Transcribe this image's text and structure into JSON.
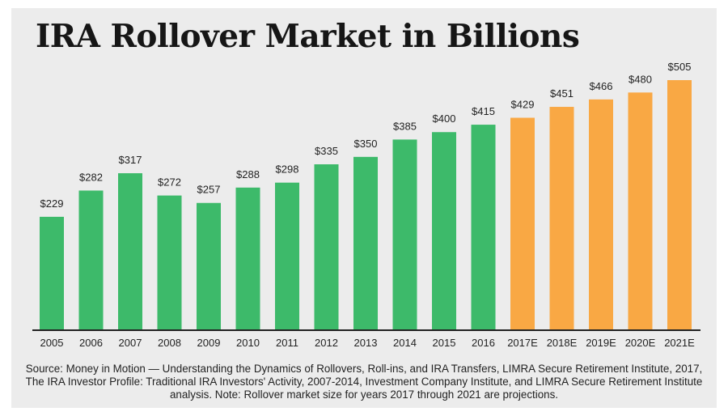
{
  "chart_data": {
    "type": "bar",
    "title": "IRA Rollover Market in Billions",
    "categories": [
      "2005",
      "2006",
      "2007",
      "2008",
      "2009",
      "2010",
      "2011",
      "2012",
      "2013",
      "2014",
      "2015",
      "2016",
      "2017E",
      "2018E",
      "2019E",
      "2020E",
      "2021E"
    ],
    "values": [
      229,
      282,
      317,
      272,
      257,
      288,
      298,
      335,
      350,
      385,
      400,
      415,
      429,
      451,
      466,
      480,
      505
    ],
    "value_labels": [
      "$229",
      "$282",
      "$317",
      "$272",
      "$257",
      "$288",
      "$298",
      "$335",
      "$350",
      "$385",
      "$400",
      "$415",
      "$429",
      "$451",
      "$466",
      "$480",
      "$505"
    ],
    "projected": [
      false,
      false,
      false,
      false,
      false,
      false,
      false,
      false,
      false,
      false,
      false,
      false,
      true,
      true,
      true,
      true,
      true
    ],
    "ylim": [
      0,
      505
    ],
    "grid": false,
    "legend": "none",
    "colors": {
      "actual": "#3dba6a",
      "projected": "#f9a844",
      "axis": "#222222"
    }
  },
  "source_note": "Source: Money in Motion — Understanding the Dynamics of Rollovers, Roll-ins, and IRA Transfers, LIMRA Secure Retirement Institute, 2017, The IRA Investor Profile: Traditional IRA Investors' Activity, 2007-2014, Investment Company Institute, and LIMRA Secure Retirement Institute analysis. Note: Rollover market size for years 2017 through 2021 are projections."
}
